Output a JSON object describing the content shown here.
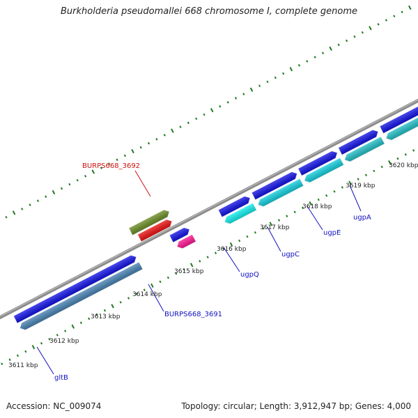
{
  "title": "Burkholderia pseudomallei 668 chromosome I, complete genome",
  "footer": {
    "accession": "Accession: NC_009074",
    "topology": "Topology: circular; Length: 3,912,947 bp; Genes: 4,000"
  },
  "colors": {
    "backbone": "#8c8c8c",
    "tick": "#1f7a1f",
    "label_default": "#1010c0",
    "label_highlight": "#d01010",
    "cds_forward": "#1010e8",
    "cds_reverse": "#10d0e0",
    "gene_olive": "#6b8e23",
    "gene_red": "#ee1010",
    "gene_pink": "#ff1493",
    "gene_steel": "#4682b4",
    "gene_teal": "#20c0c8"
  },
  "kbp_ticks": [
    {
      "label": "3611 kbp"
    },
    {
      "label": "3612 kbp"
    },
    {
      "label": "3613 kbp"
    },
    {
      "label": "3614 kbp"
    },
    {
      "label": "3615 kbp"
    },
    {
      "label": "3616 kbp"
    },
    {
      "label": "3617 kbp"
    },
    {
      "label": "3618 kbp"
    },
    {
      "label": "3619 kbp"
    },
    {
      "label": "3620 kbp"
    }
  ],
  "gene_labels": [
    {
      "name": "BURPS668_3692",
      "color": "#d01010"
    },
    {
      "name": "BURPS668_3691",
      "color": "#1010c0"
    },
    {
      "name": "gltB",
      "color": "#1010c0"
    },
    {
      "name": "ugpQ",
      "color": "#1010c0"
    },
    {
      "name": "ugpC",
      "color": "#1010c0"
    },
    {
      "name": "ugpE",
      "color": "#1010c0"
    },
    {
      "name": "ugpA",
      "color": "#1010c0"
    }
  ],
  "features": [
    {
      "name": "gltB",
      "strand": "forward",
      "color": "#1010e8"
    },
    {
      "name": "gltB",
      "strand": "reverse",
      "color": "#4682b4"
    },
    {
      "name": "BURPS668_3692",
      "strand": "forward",
      "color": "#6b8e23"
    },
    {
      "name": "BURPS668_3692",
      "strand": "reverse",
      "color": "#ee1010"
    },
    {
      "name": "BURPS668_3691",
      "strand": "forward",
      "color": "#1010e8"
    },
    {
      "name": "BURPS668_3691",
      "strand": "reverse",
      "color": "#ff1493"
    },
    {
      "name": "ugpQ",
      "strand": "forward",
      "color": "#1010e8"
    },
    {
      "name": "ugpQ",
      "strand": "reverse",
      "color": "#10f0f0"
    },
    {
      "name": "ugpC",
      "strand": "forward",
      "color": "#1010e8"
    },
    {
      "name": "ugpC",
      "strand": "reverse",
      "color": "#10d0e0"
    },
    {
      "name": "ugpE",
      "strand": "forward",
      "color": "#1010e8"
    },
    {
      "name": "ugpE",
      "strand": "reverse",
      "color": "#10d0e0"
    },
    {
      "name": "ugpA",
      "strand": "forward",
      "color": "#1010e8"
    },
    {
      "name": "ugpA",
      "strand": "reverse",
      "color": "#20c0c8"
    },
    {
      "name": "",
      "strand": "forward",
      "color": "#1010e8"
    },
    {
      "name": "",
      "strand": "reverse",
      "color": "#20c0c8"
    }
  ]
}
